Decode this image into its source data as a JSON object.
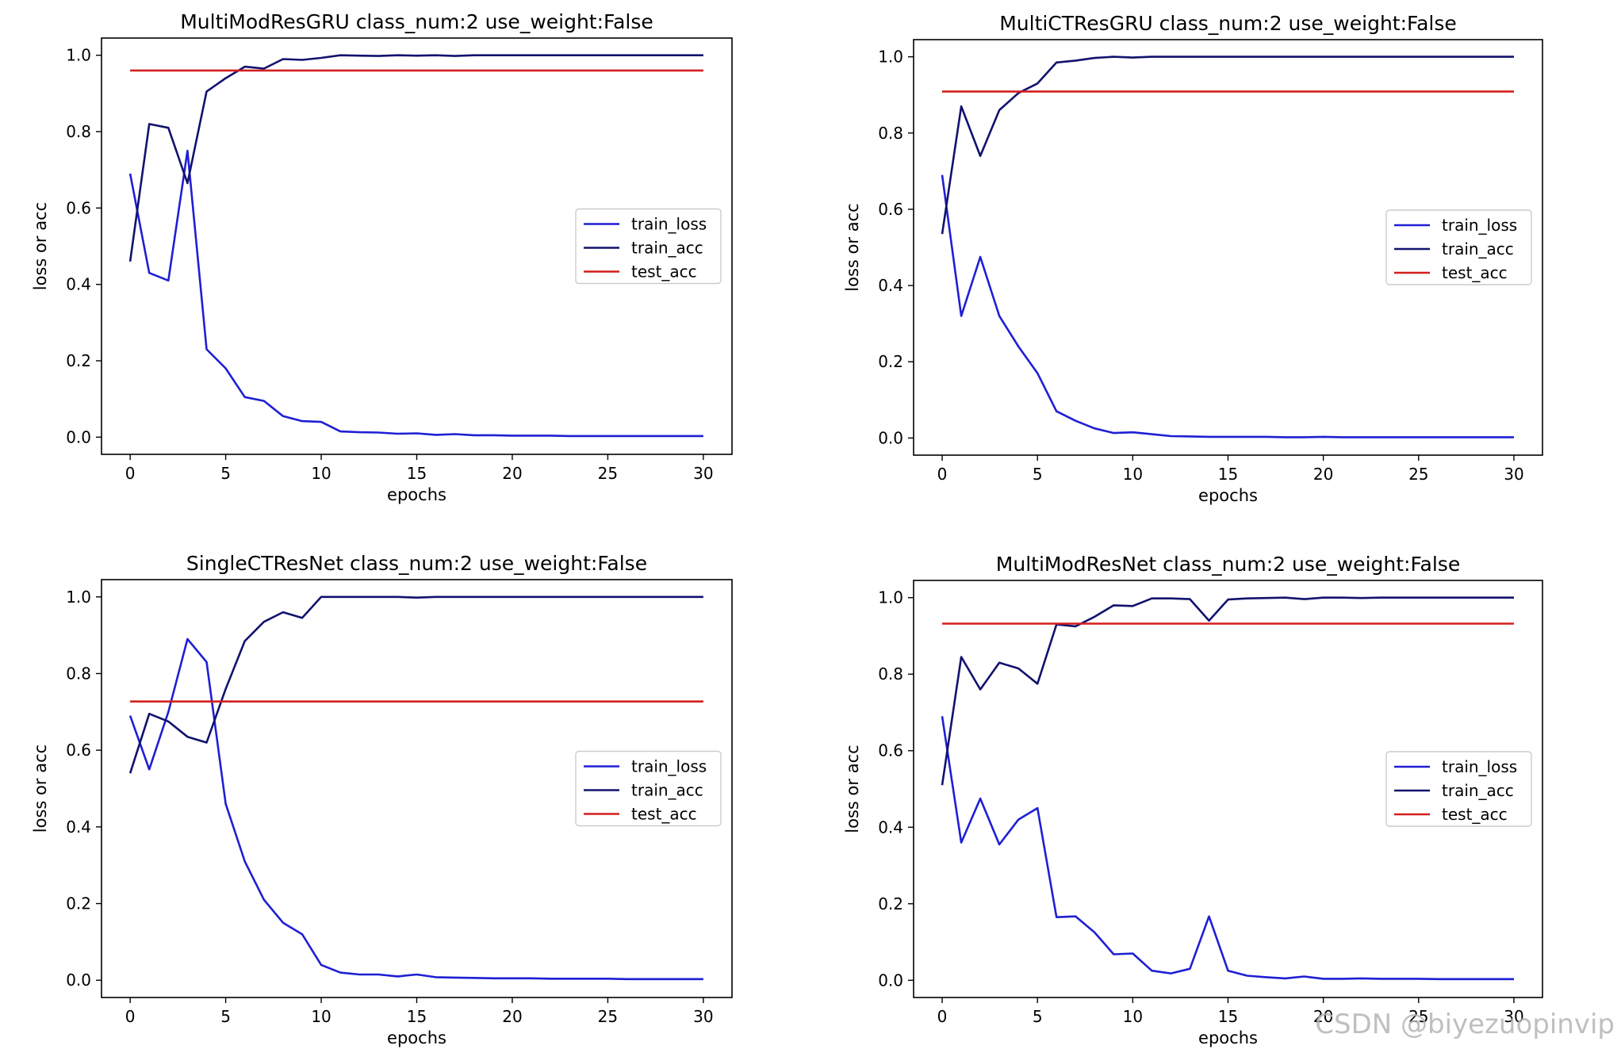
{
  "watermark": "CSDN @biyezuopinvip",
  "colors": {
    "train_loss": "#1f1fd4",
    "train_acc": "#12126e",
    "test_acc": "#d41f1f",
    "axis": "#000000"
  },
  "chart_data": [
    {
      "type": "line",
      "title": "MultiModResGRU class_num:2 use_weight:False",
      "xlabel": "epochs",
      "ylabel": "loss or acc",
      "xlim": [
        -1.5,
        31.5
      ],
      "ylim": [
        -0.045,
        1.045
      ],
      "xticks": [
        0,
        5,
        10,
        15,
        20,
        25,
        30
      ],
      "yticks": [
        0.0,
        0.2,
        0.4,
        0.6,
        0.8,
        1.0
      ],
      "ytick_labels": [
        "0.0",
        "0.2",
        "0.4",
        "0.6",
        "0.8",
        "1.0"
      ],
      "grid": false,
      "legend_position": "center-right",
      "x": [
        0,
        1,
        2,
        3,
        4,
        5,
        6,
        7,
        8,
        9,
        10,
        11,
        12,
        13,
        14,
        15,
        16,
        17,
        18,
        19,
        20,
        21,
        22,
        23,
        24,
        25,
        26,
        27,
        28,
        29,
        30
      ],
      "series": [
        {
          "name": "train_loss",
          "color_key": "train_loss",
          "values": [
            0.69,
            0.43,
            0.41,
            0.75,
            0.23,
            0.18,
            0.105,
            0.095,
            0.055,
            0.042,
            0.04,
            0.015,
            0.013,
            0.012,
            0.009,
            0.01,
            0.006,
            0.008,
            0.005,
            0.005,
            0.004,
            0.004,
            0.004,
            0.003,
            0.003,
            0.003,
            0.003,
            0.003,
            0.003,
            0.003,
            0.003
          ]
        },
        {
          "name": "train_acc",
          "color_key": "train_acc",
          "values": [
            0.46,
            0.82,
            0.81,
            0.665,
            0.905,
            0.94,
            0.97,
            0.965,
            0.99,
            0.988,
            0.993,
            1.0,
            0.999,
            0.998,
            1.0,
            0.999,
            1.0,
            0.998,
            1.0,
            1.0,
            1.0,
            1.0,
            1.0,
            1.0,
            1.0,
            1.0,
            1.0,
            1.0,
            1.0,
            1.0,
            1.0
          ]
        },
        {
          "name": "test_acc",
          "color_key": "test_acc",
          "values": [
            0.96,
            0.96,
            0.96,
            0.96,
            0.96,
            0.96,
            0.96,
            0.96,
            0.96,
            0.96,
            0.96,
            0.96,
            0.96,
            0.96,
            0.96,
            0.96,
            0.96,
            0.96,
            0.96,
            0.96,
            0.96,
            0.96,
            0.96,
            0.96,
            0.96,
            0.96,
            0.96,
            0.96,
            0.96,
            0.96,
            0.96
          ]
        }
      ]
    },
    {
      "type": "line",
      "title": "MultiCTResGRU class_num:2 use_weight:False",
      "xlabel": "epochs",
      "ylabel": "loss or acc",
      "xlim": [
        -1.5,
        31.5
      ],
      "ylim": [
        -0.045,
        1.045
      ],
      "xticks": [
        0,
        5,
        10,
        15,
        20,
        25,
        30
      ],
      "yticks": [
        0.0,
        0.2,
        0.4,
        0.6,
        0.8,
        1.0
      ],
      "ytick_labels": [
        "0.0",
        "0.2",
        "0.4",
        "0.6",
        "0.8",
        "1.0"
      ],
      "grid": false,
      "legend_position": "center-right",
      "x": [
        0,
        1,
        2,
        3,
        4,
        5,
        6,
        7,
        8,
        9,
        10,
        11,
        12,
        13,
        14,
        15,
        16,
        17,
        18,
        19,
        20,
        21,
        22,
        23,
        24,
        25,
        26,
        27,
        28,
        29,
        30
      ],
      "series": [
        {
          "name": "train_loss",
          "color_key": "train_loss",
          "values": [
            0.69,
            0.32,
            0.475,
            0.32,
            0.24,
            0.17,
            0.07,
            0.045,
            0.025,
            0.013,
            0.015,
            0.01,
            0.005,
            0.004,
            0.003,
            0.003,
            0.003,
            0.003,
            0.002,
            0.002,
            0.003,
            0.002,
            0.002,
            0.002,
            0.002,
            0.002,
            0.002,
            0.002,
            0.002,
            0.002,
            0.002
          ]
        },
        {
          "name": "train_acc",
          "color_key": "train_acc",
          "values": [
            0.535,
            0.87,
            0.74,
            0.86,
            0.905,
            0.93,
            0.985,
            0.99,
            0.997,
            1.0,
            0.998,
            1.0,
            1.0,
            1.0,
            1.0,
            1.0,
            1.0,
            1.0,
            1.0,
            1.0,
            1.0,
            1.0,
            1.0,
            1.0,
            1.0,
            1.0,
            1.0,
            1.0,
            1.0,
            1.0,
            1.0
          ]
        },
        {
          "name": "test_acc",
          "color_key": "test_acc",
          "values": [
            0.909,
            0.909,
            0.909,
            0.909,
            0.909,
            0.909,
            0.909,
            0.909,
            0.909,
            0.909,
            0.909,
            0.909,
            0.909,
            0.909,
            0.909,
            0.909,
            0.909,
            0.909,
            0.909,
            0.909,
            0.909,
            0.909,
            0.909,
            0.909,
            0.909,
            0.909,
            0.909,
            0.909,
            0.909,
            0.909,
            0.909
          ]
        }
      ]
    },
    {
      "type": "line",
      "title": "SingleCTResNet class_num:2 use_weight:False",
      "xlabel": "epochs",
      "ylabel": "loss or acc",
      "xlim": [
        -1.5,
        31.5
      ],
      "ylim": [
        -0.045,
        1.045
      ],
      "xticks": [
        0,
        5,
        10,
        15,
        20,
        25,
        30
      ],
      "yticks": [
        0.0,
        0.2,
        0.4,
        0.6,
        0.8,
        1.0
      ],
      "ytick_labels": [
        "0.0",
        "0.2",
        "0.4",
        "0.6",
        "0.8",
        "1.0"
      ],
      "grid": false,
      "legend_position": "center-right",
      "x": [
        0,
        1,
        2,
        3,
        4,
        5,
        6,
        7,
        8,
        9,
        10,
        11,
        12,
        13,
        14,
        15,
        16,
        17,
        18,
        19,
        20,
        21,
        22,
        23,
        24,
        25,
        26,
        27,
        28,
        29,
        30
      ],
      "series": [
        {
          "name": "train_loss",
          "color_key": "train_loss",
          "values": [
            0.69,
            0.55,
            0.7,
            0.89,
            0.83,
            0.46,
            0.31,
            0.21,
            0.15,
            0.12,
            0.04,
            0.02,
            0.015,
            0.015,
            0.01,
            0.015,
            0.008,
            0.007,
            0.006,
            0.005,
            0.005,
            0.005,
            0.004,
            0.004,
            0.004,
            0.004,
            0.003,
            0.003,
            0.003,
            0.003,
            0.003
          ]
        },
        {
          "name": "train_acc",
          "color_key": "train_acc",
          "values": [
            0.54,
            0.695,
            0.675,
            0.635,
            0.62,
            0.76,
            0.885,
            0.935,
            0.96,
            0.945,
            1.0,
            1.0,
            1.0,
            1.0,
            1.0,
            0.998,
            1.0,
            1.0,
            1.0,
            1.0,
            1.0,
            1.0,
            1.0,
            1.0,
            1.0,
            1.0,
            1.0,
            1.0,
            1.0,
            1.0,
            1.0
          ]
        },
        {
          "name": "test_acc",
          "color_key": "test_acc",
          "values": [
            0.727,
            0.727,
            0.727,
            0.727,
            0.727,
            0.727,
            0.727,
            0.727,
            0.727,
            0.727,
            0.727,
            0.727,
            0.727,
            0.727,
            0.727,
            0.727,
            0.727,
            0.727,
            0.727,
            0.727,
            0.727,
            0.727,
            0.727,
            0.727,
            0.727,
            0.727,
            0.727,
            0.727,
            0.727,
            0.727,
            0.727
          ]
        }
      ]
    },
    {
      "type": "line",
      "title": "MultiModResNet class_num:2 use_weight:False",
      "xlabel": "epochs",
      "ylabel": "loss or acc",
      "xlim": [
        -1.5,
        31.5
      ],
      "ylim": [
        -0.045,
        1.045
      ],
      "xticks": [
        0,
        5,
        10,
        15,
        20,
        25,
        30
      ],
      "yticks": [
        0.0,
        0.2,
        0.4,
        0.6,
        0.8,
        1.0
      ],
      "ytick_labels": [
        "0.0",
        "0.2",
        "0.4",
        "0.6",
        "0.8",
        "1.0"
      ],
      "grid": false,
      "legend_position": "center-right",
      "x": [
        0,
        1,
        2,
        3,
        4,
        5,
        6,
        7,
        8,
        9,
        10,
        11,
        12,
        13,
        14,
        15,
        16,
        17,
        18,
        19,
        20,
        21,
        22,
        23,
        24,
        25,
        26,
        27,
        28,
        29,
        30
      ],
      "series": [
        {
          "name": "train_loss",
          "color_key": "train_loss",
          "values": [
            0.69,
            0.36,
            0.475,
            0.355,
            0.42,
            0.45,
            0.165,
            0.167,
            0.125,
            0.068,
            0.07,
            0.025,
            0.018,
            0.03,
            0.167,
            0.025,
            0.012,
            0.008,
            0.005,
            0.01,
            0.004,
            0.004,
            0.005,
            0.004,
            0.004,
            0.004,
            0.003,
            0.003,
            0.003,
            0.003,
            0.003
          ]
        },
        {
          "name": "train_acc",
          "color_key": "train_acc",
          "values": [
            0.51,
            0.845,
            0.76,
            0.83,
            0.815,
            0.775,
            0.93,
            0.925,
            0.95,
            0.98,
            0.978,
            0.998,
            0.998,
            0.996,
            0.94,
            0.995,
            0.998,
            0.999,
            1.0,
            0.996,
            1.0,
            1.0,
            0.999,
            1.0,
            1.0,
            1.0,
            1.0,
            1.0,
            1.0,
            1.0,
            1.0
          ]
        },
        {
          "name": "test_acc",
          "color_key": "test_acc",
          "values": [
            0.932,
            0.932,
            0.932,
            0.932,
            0.932,
            0.932,
            0.932,
            0.932,
            0.932,
            0.932,
            0.932,
            0.932,
            0.932,
            0.932,
            0.932,
            0.932,
            0.932,
            0.932,
            0.932,
            0.932,
            0.932,
            0.932,
            0.932,
            0.932,
            0.932,
            0.932,
            0.932,
            0.932,
            0.932,
            0.932,
            0.932
          ]
        }
      ]
    }
  ]
}
